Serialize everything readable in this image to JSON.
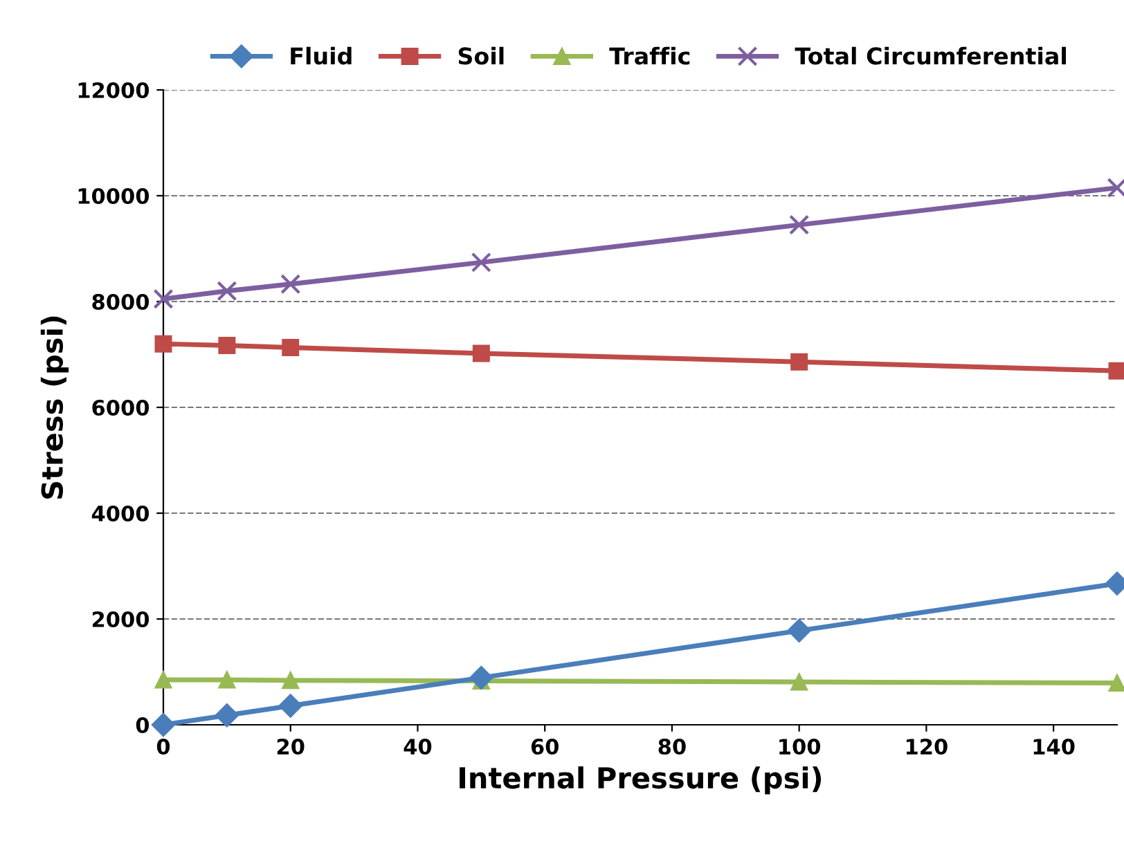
{
  "chart_data": {
    "type": "line",
    "xlabel": "Internal Pressure (psi)",
    "ylabel": "Stress (psi)",
    "x": [
      0,
      10,
      20,
      50,
      100,
      150
    ],
    "series": [
      {
        "name": "Fluid",
        "color": "#4a7ebb",
        "marker": "diamond",
        "values": [
          0,
          180,
          360,
          890,
          1780,
          2670
        ]
      },
      {
        "name": "Soil",
        "color": "#be4b48",
        "marker": "square",
        "values": [
          7200,
          7170,
          7130,
          7020,
          6860,
          6690
        ]
      },
      {
        "name": "Traffic",
        "color": "#98b954",
        "marker": "triangle",
        "values": [
          850,
          850,
          840,
          830,
          810,
          790
        ]
      },
      {
        "name": "Total Circumferential",
        "color": "#7d5fa0",
        "marker": "cross",
        "values": [
          8050,
          8200,
          8330,
          8740,
          9450,
          10150
        ]
      }
    ],
    "xlim": [
      0,
      150
    ],
    "xticks": [
      0,
      20,
      40,
      60,
      80,
      100,
      120,
      140
    ],
    "ylim": [
      0,
      12000
    ],
    "yticks": [
      0,
      2000,
      4000,
      6000,
      8000,
      10000,
      12000
    ],
    "grid": "y",
    "legend": "top",
    "line_style": "solid"
  }
}
